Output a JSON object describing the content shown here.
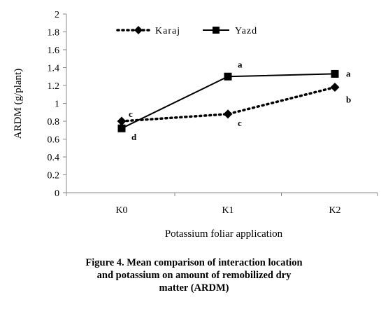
{
  "chart_data": {
    "type": "line",
    "categories": [
      "K0",
      "K1",
      "K2"
    ],
    "ylabel": "ARDM (g/plant)",
    "xlabel": "Potassium foliar application",
    "ylim": [
      0,
      2
    ],
    "yticks": [
      "0",
      "0.2",
      "0.4",
      "0.6",
      "0.8",
      "1",
      "1.2",
      "1.4",
      "1.6",
      "1.8",
      "2"
    ],
    "grid": false,
    "legend_placement": "top-left",
    "series": [
      {
        "name": "Karaj",
        "values": [
          0.8,
          0.88,
          1.18
        ],
        "style": "dotted",
        "marker": "diamond",
        "color": "#000000",
        "labels": [
          "c",
          "c",
          "b"
        ]
      },
      {
        "name": "Yazd",
        "values": [
          0.72,
          1.3,
          1.33
        ],
        "style": "solid",
        "marker": "square",
        "color": "#000000",
        "labels": [
          "d",
          "a",
          "a"
        ]
      }
    ]
  },
  "caption": {
    "line1": "Figure 4. Mean comparison of interaction location",
    "line2": "and potassium on amount of remobilized dry",
    "line3": "matter (ARDM)"
  }
}
